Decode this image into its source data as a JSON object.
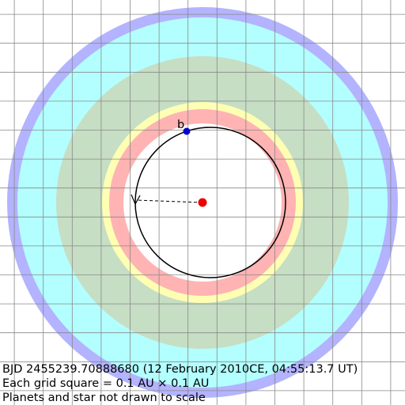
{
  "planets": [
    {
      "label": "b"
    }
  ],
  "caption": [
    "BJD 2455239.70888680 (12 February 2010CE, 04:55:13.7 UT)",
    "Each grid square = 0.1 AU × 0.1 AU",
    "Planets and star not drawn to scale"
  ]
}
